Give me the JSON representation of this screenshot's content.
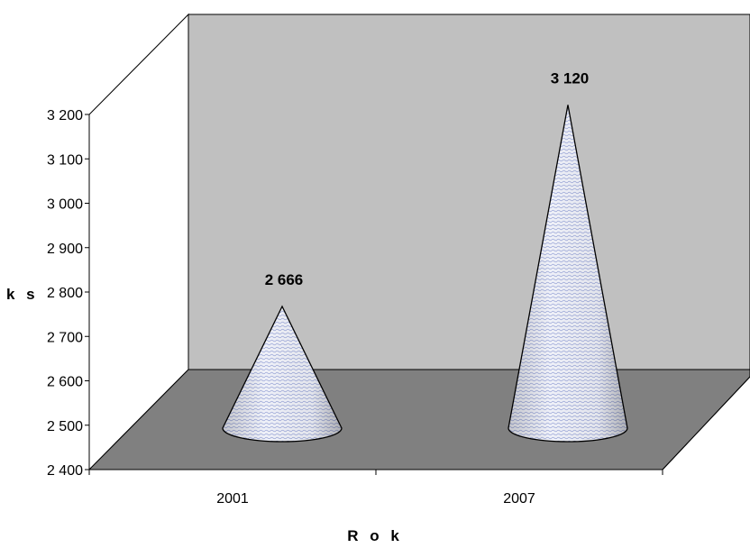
{
  "chart_data": {
    "type": "bar",
    "bar_shape": "cone",
    "style": "3d",
    "categories": [
      "2001",
      "2007"
    ],
    "values": [
      2666,
      3120
    ],
    "data_labels": [
      "2 666",
      "3 120"
    ],
    "ylabel": "k s",
    "xlabel": "R o k",
    "ylim": [
      2400,
      3200
    ],
    "yticks": [
      "2 400",
      "2 500",
      "2 600",
      "2 700",
      "2 800",
      "2 900",
      "3 000",
      "3 100",
      "3 200"
    ],
    "grid": false,
    "legend": "none",
    "colors": {
      "back_wall": "#c0c0c0",
      "floor": "#808080",
      "cone_fill": "#eef0f8",
      "cone_pattern": "#9aa6d8",
      "outline": "#000000"
    }
  }
}
